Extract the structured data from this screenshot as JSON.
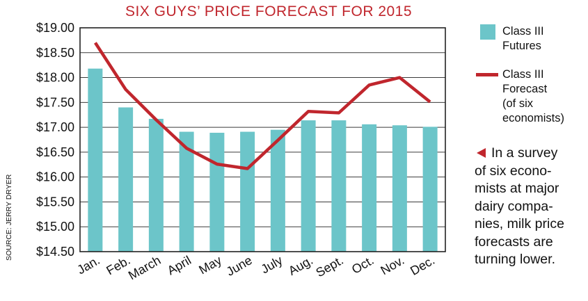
{
  "chart_data": {
    "type": "bar",
    "title": "SIX GUYS’ PRICE FORECAST FOR 2015",
    "source": "SOURCE: JERRY DRYER",
    "categories": [
      "Jan.",
      "Feb.",
      "March",
      "April",
      "May",
      "June",
      "July",
      "Aug.",
      "Sept.",
      "Oct.",
      "Nov.",
      "Dec."
    ],
    "yticks": [
      "$19.00",
      "$18.50",
      "$18.00",
      "$17.50",
      "$17.00",
      "$16.50",
      "$16.00",
      "$15.50",
      "$15.00",
      "$14.50"
    ],
    "ylim": [
      14.5,
      19.0
    ],
    "grid": true,
    "legend_position": "right",
    "series": [
      {
        "name": "Class III\nFutures",
        "kind": "bar",
        "color": "#6cc5c9",
        "values": [
          18.18,
          17.4,
          17.17,
          16.91,
          16.89,
          16.91,
          16.95,
          17.14,
          17.14,
          17.06,
          17.04,
          17.01
        ]
      },
      {
        "name": "Class III\nForecast\n(of six\neconomists)",
        "kind": "line",
        "color": "#c0262d",
        "values": [
          18.7,
          17.76,
          17.15,
          16.58,
          16.26,
          16.17,
          16.74,
          17.32,
          17.29,
          17.85,
          18.0,
          17.51
        ]
      }
    ]
  },
  "note": {
    "text": "In a survey\nof six econo-\nmists at major\ndairy compa-\nnies, milk price\nforecasts are\nturning lower."
  }
}
